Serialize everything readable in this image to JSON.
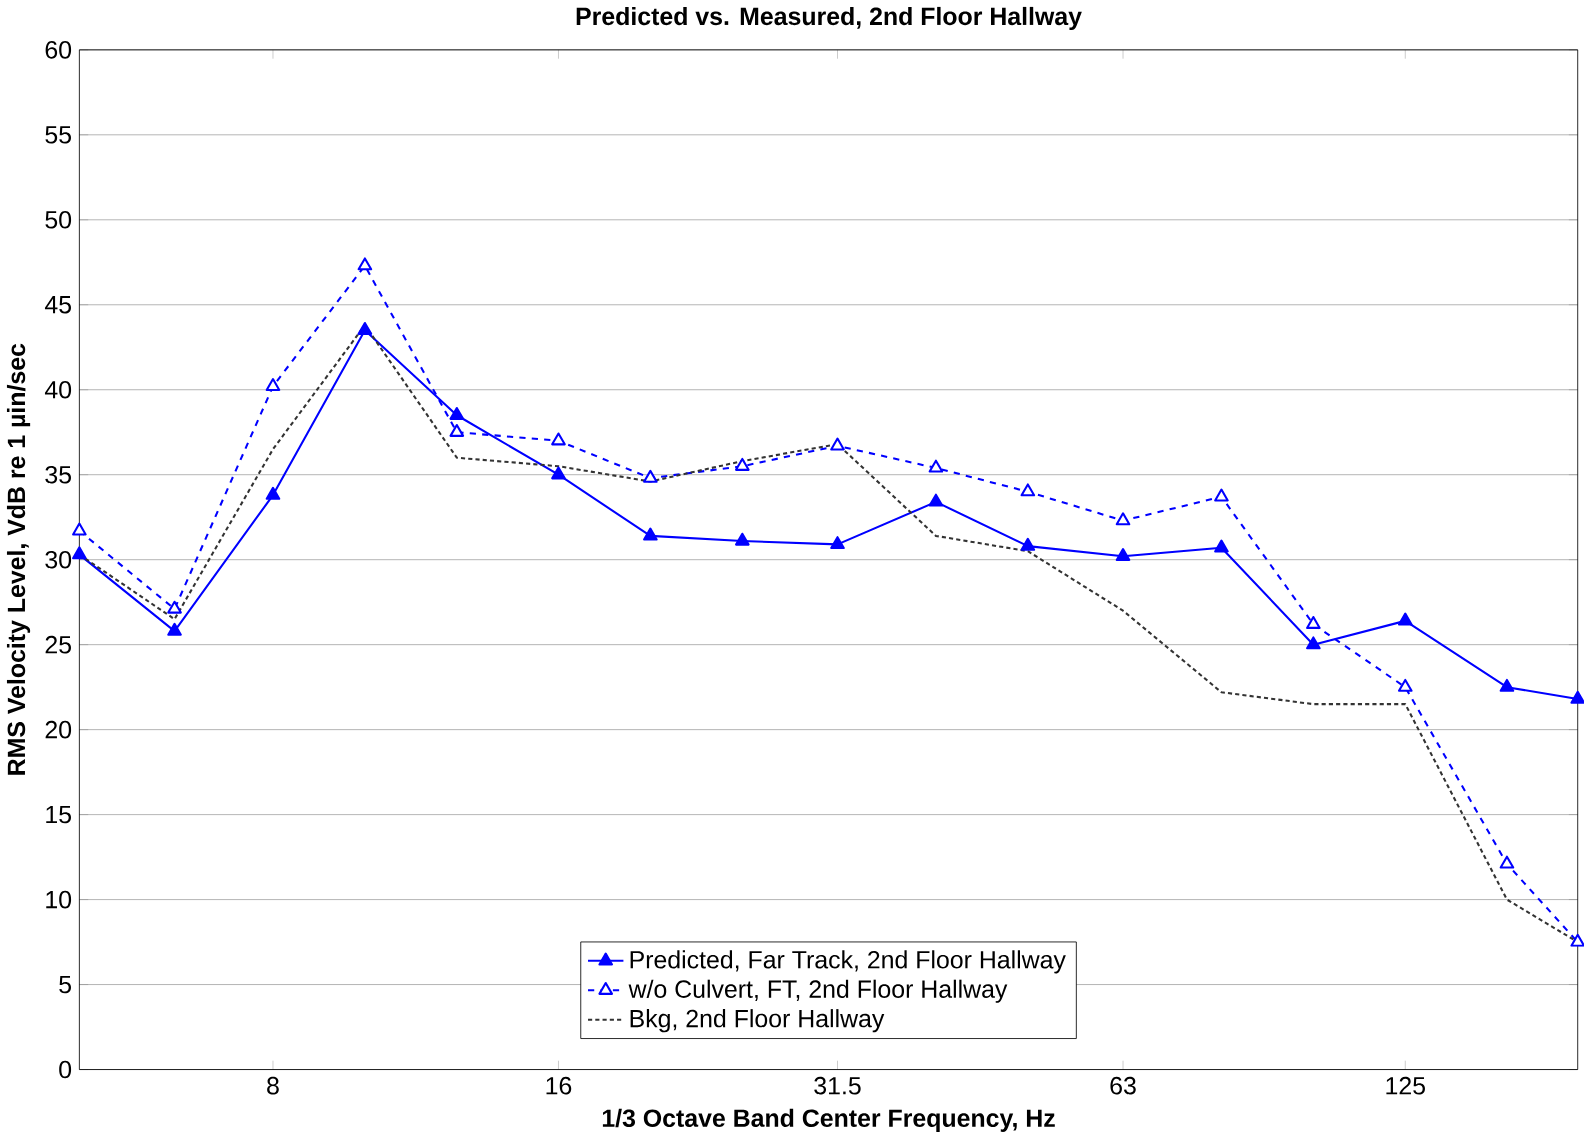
{
  "chart_data": {
    "type": "line",
    "title": "Predicted vs. Measured, 2nd Floor Hallway",
    "xlabel": "1/3 Octave Band Center Frequency, Hz",
    "ylabel": "RMS Velocity Level, VdB re 1 µin/sec",
    "log": "x",
    "xlim": [
      5,
      190
    ],
    "xticks": [
      8,
      16,
      31.5,
      63,
      125
    ],
    "ylim": [
      0,
      60
    ],
    "yticks": [
      0,
      5,
      10,
      15,
      20,
      25,
      30,
      35,
      40,
      45,
      50,
      55,
      60
    ],
    "grid": "y",
    "legend": "bottom",
    "x": [
      5,
      6.3,
      8,
      10,
      12.5,
      16,
      20,
      25,
      31.5,
      40,
      50,
      63,
      80,
      100,
      125,
      160,
      190
    ],
    "series": [
      {
        "name": "Predicted, Far Track, 2nd Floor Hallway",
        "color": "#0000ff",
        "marker": "triangle",
        "line_style": "solid",
        "values": [
          30.3,
          25.8,
          33.8,
          43.5,
          38.5,
          35.0,
          31.4,
          31.1,
          30.9,
          33.4,
          30.8,
          30.2,
          30.7,
          25.0,
          26.4,
          22.5,
          21.8
        ]
      },
      {
        "name": "w/o Culvert, FT, 2nd Floor Hallway",
        "color": "#0000ff",
        "marker": "triangle",
        "line_style": "dashed",
        "values": [
          31.7,
          27.1,
          40.2,
          47.3,
          37.5,
          37.0,
          34.8,
          35.5,
          36.7,
          35.4,
          34.0,
          32.3,
          33.7,
          26.2,
          22.5,
          12.1,
          7.5
        ]
      },
      {
        "name": "Bkg, 2nd Floor Hallway",
        "color": "#333333",
        "marker": "none",
        "line_style": "dotted",
        "values": [
          30.3,
          26.5,
          36.5,
          43.8,
          36.0,
          35.5,
          34.6,
          35.8,
          36.8,
          31.4,
          30.5,
          27.0,
          22.2,
          21.5,
          21.5,
          10.0,
          7.5
        ]
      }
    ]
  }
}
